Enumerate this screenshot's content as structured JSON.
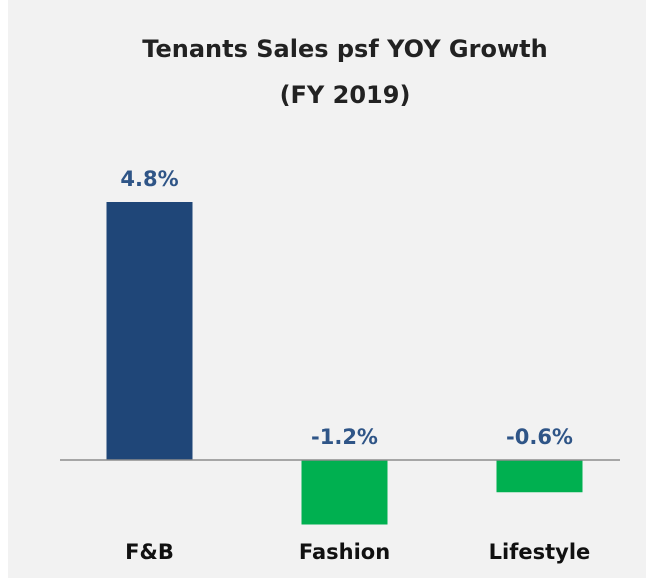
{
  "chart_data": {
    "type": "bar",
    "title": [
      "Tenants Sales psf YOY Growth",
      "(FY 2019)"
    ],
    "categories": [
      "F&B",
      "Fashion",
      "Lifestyle"
    ],
    "values": [
      4.8,
      -1.2,
      -0.6
    ],
    "value_labels": [
      "4.8%",
      "-1.2%",
      "-0.6%"
    ],
    "colors": [
      "#1f4678",
      "#00b050",
      "#00b050"
    ],
    "label_color": "#2f5587",
    "ylim": [
      -2,
      6
    ],
    "grid": false
  }
}
